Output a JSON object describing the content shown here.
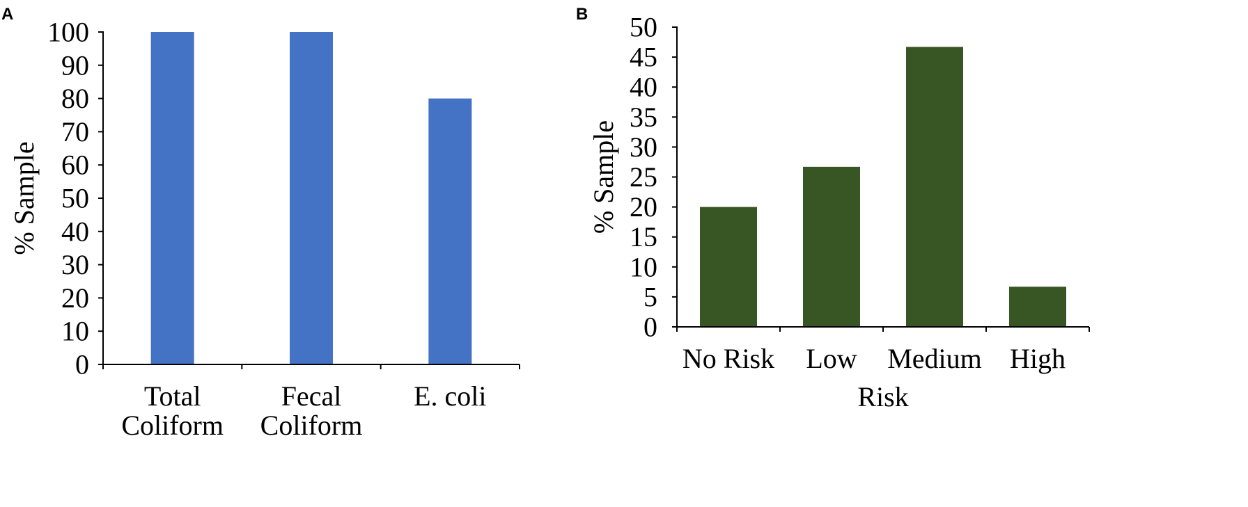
{
  "chart_data": [
    {
      "panel_label": "A",
      "type": "bar",
      "title": "",
      "xlabel": "",
      "ylabel": "% Sample",
      "categories": [
        [
          "Total",
          "Coliform"
        ],
        [
          "Fecal",
          "Coliform"
        ],
        [
          "E. coli"
        ]
      ],
      "values": [
        100,
        100,
        80
      ],
      "ylim": [
        0,
        100
      ],
      "yticks": [
        0,
        10,
        20,
        30,
        40,
        50,
        60,
        70,
        80,
        90,
        100
      ],
      "grid": false,
      "color": "#4472C4"
    },
    {
      "panel_label": "B",
      "type": "bar",
      "title": "",
      "xlabel": "Risk",
      "ylabel": "% Sample",
      "categories": [
        [
          "No Risk"
        ],
        [
          "Low"
        ],
        [
          "Medium"
        ],
        [
          "High"
        ]
      ],
      "values": [
        20,
        26.7,
        46.7,
        6.7
      ],
      "ylim": [
        0,
        50
      ],
      "yticks": [
        0,
        5,
        10,
        15,
        20,
        25,
        30,
        35,
        40,
        45,
        50
      ],
      "grid": false,
      "color": "#375623"
    }
  ]
}
